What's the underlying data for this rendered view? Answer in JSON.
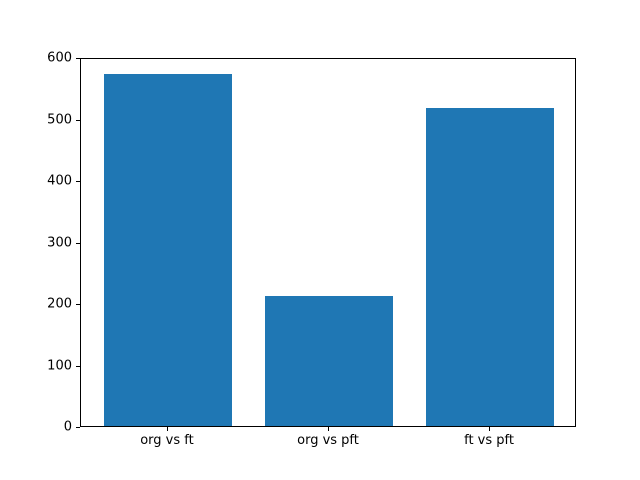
{
  "chart_data": {
    "type": "bar",
    "categories": [
      "org vs ft",
      "org vs pft",
      "ft vs pft"
    ],
    "values": [
      575,
      215,
      520
    ],
    "title": "",
    "xlabel": "",
    "ylabel": "",
    "ylim": [
      0,
      600
    ],
    "yticks": [
      0,
      100,
      200,
      300,
      400,
      500,
      600
    ],
    "xlim": [
      -0.54,
      2.54
    ],
    "bar_width": 0.8,
    "bar_color": "#1f77b4",
    "axis_color": "#000000",
    "background_color": "#ffffff",
    "grid": false,
    "legend": "none"
  }
}
